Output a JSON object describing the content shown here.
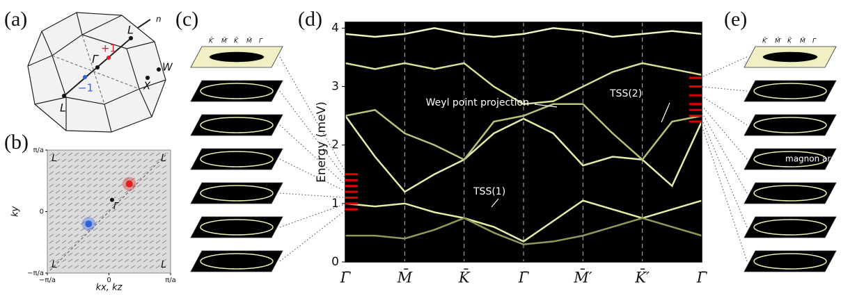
{
  "figure": {
    "panel_labels": [
      "(a)",
      "(b)",
      "(c)",
      "(d)",
      "(e)"
    ],
    "a_labels": [
      "n",
      "L",
      "Γ",
      "+1",
      "−1",
      "L",
      "W",
      "X"
    ],
    "c_top_labels": [
      "K̄′",
      "M̄′",
      "K̄",
      "M̄",
      "Γ̄"
    ],
    "e_top_labels": [
      "K̄′",
      "M̄′",
      "K̄",
      "M̄",
      "Γ̄"
    ],
    "e_annotation": "magnon arc"
  },
  "chart_data": [
    {
      "type": "band",
      "ylabel": "Energy (meV)",
      "categories": [
        "Γ̄",
        null,
        "M̄",
        null,
        "K̄",
        null,
        "Γ̄",
        null,
        "M̄′",
        null,
        "K̄′",
        null,
        "Γ̄"
      ],
      "ylim": [
        0,
        4.1
      ],
      "yticks": [
        0,
        1,
        2,
        3,
        4
      ],
      "grid": "dashed",
      "background": "#000000",
      "series": [
        {
          "color": "#e6eca8",
          "values": [
            1.0,
            0.95,
            1.0,
            0.85,
            0.75,
            0.6,
            0.35,
            0.7,
            1.05,
            0.9,
            0.75,
            0.9,
            1.05
          ]
        },
        {
          "color": "#8f9a5a",
          "values": [
            0.45,
            0.45,
            0.4,
            0.55,
            0.75,
            0.5,
            0.3,
            0.35,
            0.45,
            0.6,
            0.75,
            0.6,
            0.45
          ]
        },
        {
          "color": "#e6eca8",
          "values": [
            2.5,
            1.8,
            1.2,
            1.5,
            1.75,
            2.2,
            2.45,
            2.2,
            1.65,
            1.8,
            1.75,
            1.3,
            2.4
          ]
        },
        {
          "color": "#b9c27a",
          "values": [
            2.5,
            2.6,
            2.2,
            2.0,
            1.75,
            2.4,
            2.5,
            2.7,
            2.7,
            2.2,
            1.75,
            2.4,
            2.5
          ]
        },
        {
          "color": "#d8df96",
          "values": [
            3.4,
            3.3,
            3.4,
            3.3,
            3.4,
            3.0,
            2.7,
            2.75,
            3.0,
            3.25,
            3.4,
            3.3,
            3.2
          ]
        },
        {
          "color": "#f0f4c0",
          "values": [
            3.9,
            3.85,
            3.9,
            4.0,
            3.9,
            3.85,
            3.9,
            4.0,
            3.95,
            3.85,
            3.9,
            3.95,
            3.9
          ]
        }
      ],
      "annotations": [
        "Weyl point projection",
        "TSS(1)",
        "TSS(2)"
      ],
      "slice_energies_left": [
        0.9,
        1.0,
        1.1,
        1.2,
        1.3,
        1.4,
        1.5
      ],
      "slice_energies_right": [
        2.4,
        2.5,
        2.6,
        2.7,
        2.85,
        3.0,
        3.15
      ],
      "slice_color": "#e00000"
    },
    {
      "type": "scatter",
      "xlabel": "kx, kz",
      "ylabel": "ky",
      "xlim": [
        -1,
        1
      ],
      "ylim": [
        -1,
        1
      ],
      "xticks": [
        {
          "value": -1,
          "label": "−π/a"
        },
        0,
        {
          "value": 1,
          "label": "π/a"
        }
      ],
      "yticks": [
        {
          "value": -1,
          "label": "−π/a"
        },
        0,
        {
          "value": 1,
          "label": "π/a"
        }
      ],
      "series": [
        {
          "color": "#e02020",
          "x": [
            0.33
          ],
          "y": [
            0.45
          ]
        },
        {
          "color": "#3060e0",
          "x": [
            -0.33
          ],
          "y": [
            -0.2
          ]
        },
        {
          "color": "#111111",
          "x": [
            0.05
          ],
          "y": [
            0.19
          ]
        }
      ],
      "corner_labels": [
        "L",
        "L",
        "L",
        "L"
      ],
      "point_label": "Γ̄"
    }
  ]
}
